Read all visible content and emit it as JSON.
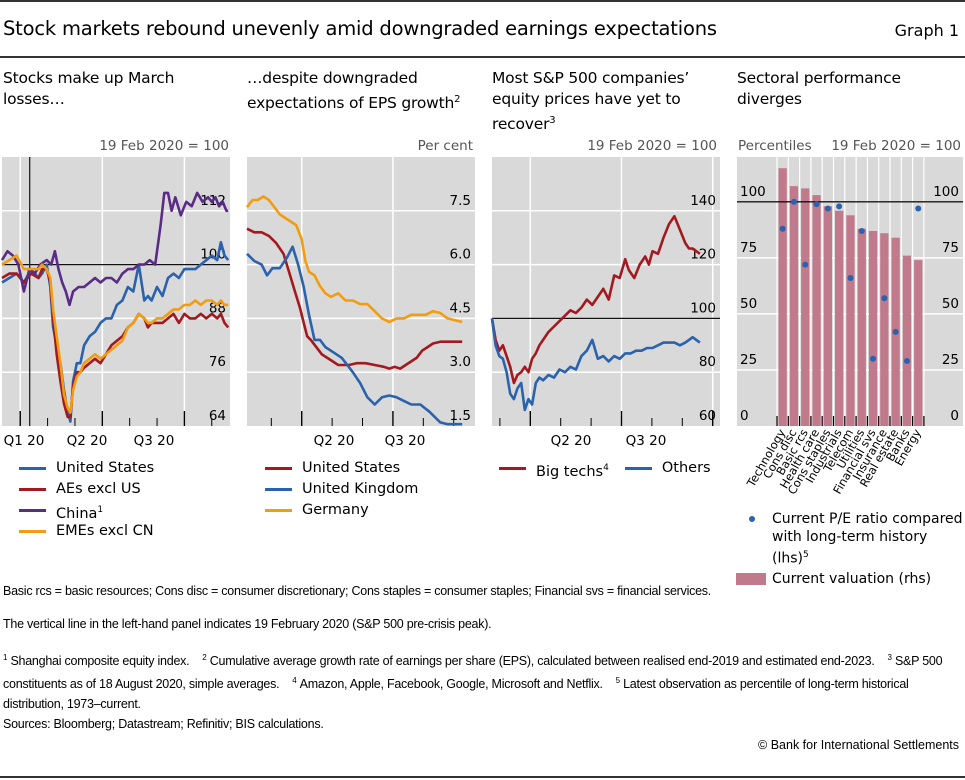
{
  "header": {
    "title": "Stock markets rebound unevenly amid downgraded earnings expectations",
    "graph_number": "Graph 1"
  },
  "colors": {
    "plot_bg": "#d9d9d9",
    "grid": "#ffffff",
    "blue": "#2a62ad",
    "red": "#a3191f",
    "purple": "#5b2c86",
    "orange": "#f29c10",
    "bar": "#c07a8b",
    "dot": "#2a62ad"
  },
  "panels": [
    {
      "title": "Stocks make up March losses…",
      "title_sup": "",
      "unit": "19 Feb 2020 = 100",
      "legend": [
        {
          "label": "United States",
          "sup": "",
          "color_key": "blue"
        },
        {
          "label": "AEs excl US",
          "sup": "",
          "color_key": "red"
        },
        {
          "label": "China",
          "sup": "1",
          "color_key": "purple"
        },
        {
          "label": "EMEs excl CN",
          "sup": "",
          "color_key": "orange"
        }
      ]
    },
    {
      "title": "…despite downgraded expectations of EPS growth",
      "title_sup": "2",
      "unit": "Per cent",
      "legend": [
        {
          "label": "United States",
          "sup": "",
          "color_key": "red"
        },
        {
          "label": "United Kingdom",
          "sup": "",
          "color_key": "blue"
        },
        {
          "label": "Germany",
          "sup": "",
          "color_key": "orange"
        }
      ]
    },
    {
      "title": "Most S&P 500 companies’ equity prices have yet to recover",
      "title_sup": "3",
      "unit": "19 Feb 2020 = 100",
      "legend": [
        {
          "label": "Big techs",
          "sup": "4",
          "color_key": "red"
        },
        {
          "label": "Others",
          "sup": "",
          "color_key": "blue"
        }
      ]
    },
    {
      "title": "Sectoral performance diverges",
      "title_sup": "",
      "unit_left": "Percentiles",
      "unit": "19 Feb 2020 = 100",
      "legend": [
        {
          "label": "Current P/E ratio compared with long-term history (lhs)",
          "sup": "5",
          "kind": "dot"
        },
        {
          "label": "Current valuation (rhs)",
          "sup": "",
          "kind": "bar"
        }
      ]
    }
  ],
  "chart_data": [
    {
      "type": "line",
      "title": "Stocks make up March losses…",
      "ylabel": "19 Feb 2020 = 100",
      "ylim": [
        64,
        124
      ],
      "yticks": [
        64,
        76,
        88,
        100,
        112
      ],
      "x_tick_labels": [
        "Q1 20",
        "Q2 20",
        "Q3 20"
      ],
      "reference_hline": 100,
      "reference_vline": "19 Feb 2020",
      "xlim_days": [
        0,
        250
      ],
      "x_quarter_starts": [
        20,
        110,
        200
      ],
      "vline_day": 49,
      "series": [
        {
          "name": "United States",
          "color_key": "blue",
          "x": [
            0,
            8,
            16,
            24,
            32,
            40,
            44,
            49,
            53,
            56,
            60,
            64,
            68,
            72,
            75,
            78,
            82,
            86,
            90,
            96,
            102,
            108,
            114,
            120,
            126,
            132,
            138,
            144,
            150,
            156,
            160,
            164,
            170,
            176,
            182,
            188,
            194,
            200,
            206,
            212,
            218,
            224,
            230,
            236,
            240,
            244,
            248
          ],
          "y": [
            96,
            97,
            98,
            96,
            99,
            97,
            98,
            100,
            95,
            86,
            82,
            78,
            72,
            67,
            65,
            74,
            78,
            78,
            82,
            84,
            85,
            87,
            88,
            88,
            91,
            92,
            95,
            94,
            100,
            92,
            93,
            92,
            95,
            93,
            97,
            98,
            97,
            99,
            99,
            99,
            100,
            101,
            102,
            101,
            105,
            102,
            101
          ]
        },
        {
          "name": "AEs excl US",
          "color_key": "red",
          "x": [
            0,
            8,
            16,
            24,
            32,
            40,
            44,
            49,
            53,
            56,
            60,
            64,
            68,
            72,
            75,
            78,
            82,
            86,
            90,
            96,
            102,
            108,
            114,
            120,
            126,
            132,
            138,
            144,
            150,
            156,
            160,
            164,
            170,
            176,
            182,
            188,
            194,
            200,
            206,
            212,
            218,
            224,
            230,
            236,
            240,
            244,
            248
          ],
          "y": [
            97,
            98,
            98,
            96,
            98,
            97,
            99,
            99,
            96,
            88,
            80,
            74,
            69,
            66,
            66,
            73,
            76,
            76,
            77,
            78,
            79,
            78,
            80,
            82,
            83,
            84,
            86,
            87,
            89,
            88,
            86,
            87,
            87,
            87,
            88,
            89,
            87,
            89,
            88,
            88,
            89,
            88,
            89,
            88,
            89,
            87,
            86
          ]
        },
        {
          "name": "China",
          "color_key": "purple",
          "x": [
            0,
            6,
            12,
            18,
            24,
            30,
            36,
            42,
            49,
            54,
            58,
            62,
            66,
            70,
            74,
            78,
            84,
            90,
            96,
            102,
            108,
            114,
            120,
            126,
            132,
            138,
            144,
            150,
            156,
            162,
            168,
            174,
            178,
            182,
            186,
            190,
            196,
            202,
            208,
            214,
            220,
            226,
            230,
            234,
            238,
            242,
            246,
            248
          ],
          "y": [
            101,
            103,
            102,
            100,
            94,
            99,
            98,
            100,
            101,
            100,
            103,
            99,
            96,
            94,
            91,
            94,
            95,
            95,
            96,
            97,
            96,
            97,
            97,
            96,
            98,
            99,
            99,
            100,
            100,
            101,
            100,
            109,
            116,
            116,
            112,
            115,
            111,
            114,
            113,
            116,
            114,
            115,
            114,
            115,
            113,
            114,
            112,
            112
          ]
        },
        {
          "name": "EMEs excl CN",
          "color_key": "orange",
          "x": [
            0,
            8,
            16,
            24,
            32,
            40,
            44,
            49,
            53,
            56,
            60,
            64,
            68,
            72,
            75,
            78,
            82,
            86,
            90,
            96,
            102,
            108,
            114,
            120,
            126,
            132,
            138,
            144,
            150,
            156,
            160,
            164,
            170,
            176,
            182,
            188,
            194,
            200,
            206,
            212,
            218,
            224,
            230,
            236,
            240,
            244,
            248
          ],
          "y": [
            100,
            101,
            102,
            99,
            99,
            99,
            100,
            99,
            97,
            90,
            84,
            78,
            71,
            68,
            67,
            72,
            75,
            76,
            78,
            79,
            80,
            79,
            80,
            81,
            82,
            83,
            86,
            87,
            89,
            88,
            87,
            87,
            88,
            88,
            89,
            90,
            90,
            91,
            91,
            92,
            91,
            92,
            92,
            91,
            92,
            91,
            91
          ]
        }
      ]
    },
    {
      "type": "line",
      "title": "…despite downgraded expectations of EPS growth",
      "ylabel": "Per cent",
      "ylim": [
        1.5,
        9.0
      ],
      "yticks": [
        1.5,
        3.0,
        4.5,
        6.0,
        7.5
      ],
      "x_tick_labels": [
        "Q2 20",
        "Q3 20"
      ],
      "xlim_days": [
        0,
        250
      ],
      "x_quarter_starts": [
        60,
        160
      ],
      "series": [
        {
          "name": "United States",
          "color_key": "red",
          "x": [
            0,
            8,
            16,
            24,
            32,
            40,
            46,
            52,
            58,
            62,
            66,
            70,
            76,
            82,
            88,
            94,
            100,
            106,
            112,
            120,
            130,
            140,
            150,
            156,
            162,
            168,
            174,
            180,
            186,
            192,
            198,
            204,
            212,
            220,
            236
          ],
          "y": [
            7.0,
            6.9,
            6.9,
            6.8,
            6.6,
            6.3,
            5.8,
            5.3,
            4.8,
            4.4,
            4.0,
            3.9,
            3.7,
            3.5,
            3.4,
            3.3,
            3.2,
            3.2,
            3.2,
            3.25,
            3.25,
            3.2,
            3.15,
            3.1,
            3.15,
            3.1,
            3.2,
            3.3,
            3.4,
            3.6,
            3.7,
            3.8,
            3.85,
            3.85,
            3.85
          ]
        },
        {
          "name": "United Kingdom",
          "color_key": "blue",
          "x": [
            0,
            8,
            16,
            22,
            28,
            36,
            44,
            50,
            56,
            62,
            68,
            74,
            80,
            86,
            92,
            98,
            104,
            110,
            116,
            124,
            132,
            140,
            148,
            156,
            164,
            172,
            180,
            190,
            200,
            212,
            220,
            236
          ],
          "y": [
            6.3,
            6.1,
            6.0,
            5.7,
            5.9,
            5.9,
            6.2,
            6.5,
            6.0,
            5.4,
            4.6,
            3.9,
            3.9,
            3.7,
            3.6,
            3.5,
            3.4,
            3.2,
            3.0,
            2.7,
            2.3,
            2.1,
            2.3,
            2.35,
            2.3,
            2.2,
            2.1,
            2.1,
            1.9,
            1.6,
            1.55,
            1.55
          ]
        },
        {
          "name": "Germany",
          "color_key": "orange",
          "x": [
            0,
            6,
            12,
            18,
            24,
            30,
            36,
            42,
            48,
            54,
            60,
            64,
            68,
            74,
            80,
            86,
            92,
            100,
            108,
            116,
            124,
            132,
            140,
            148,
            156,
            164,
            172,
            180,
            188,
            196,
            204,
            212,
            220,
            236
          ],
          "y": [
            7.6,
            7.8,
            7.8,
            7.9,
            7.8,
            7.6,
            7.4,
            7.3,
            7.2,
            7.1,
            6.7,
            6.1,
            5.8,
            5.7,
            5.4,
            5.2,
            5.1,
            5.2,
            5.0,
            5.0,
            4.9,
            4.9,
            4.7,
            4.5,
            4.4,
            4.5,
            4.5,
            4.6,
            4.6,
            4.6,
            4.7,
            4.65,
            4.5,
            4.4
          ]
        }
      ]
    },
    {
      "type": "line",
      "title": "Most S&P 500 companies’ equity prices have yet to recover",
      "ylabel": "19 Feb 2020 = 100",
      "ylim": [
        60,
        160
      ],
      "yticks": [
        60,
        80,
        100,
        120,
        140
      ],
      "x_tick_labels": [
        "Q2 20",
        "Q3 20"
      ],
      "reference_hline": 100,
      "xlim_days": [
        0,
        250
      ],
      "x_quarter_starts": [
        42,
        142
      ],
      "series": [
        {
          "name": "Big techs",
          "color_key": "red",
          "x": [
            0,
            4,
            8,
            12,
            16,
            20,
            24,
            28,
            32,
            36,
            40,
            44,
            48,
            52,
            56,
            62,
            68,
            74,
            80,
            86,
            92,
            98,
            104,
            110,
            116,
            122,
            128,
            134,
            140,
            146,
            150,
            156,
            162,
            168,
            172,
            176,
            182,
            188,
            194,
            200,
            206,
            212,
            216,
            220,
            224,
            228
          ],
          "y": [
            100,
            92,
            88,
            90,
            86,
            82,
            76,
            79,
            80,
            82,
            80,
            85,
            87,
            90,
            92,
            95,
            97,
            99,
            101,
            103,
            102,
            104,
            107,
            105,
            108,
            111,
            107,
            116,
            115,
            122,
            118,
            115,
            120,
            123,
            120,
            125,
            124,
            130,
            135,
            138,
            133,
            128,
            126,
            126,
            125,
            124
          ]
        },
        {
          "name": "Others",
          "color_key": "blue",
          "x": [
            0,
            4,
            8,
            12,
            16,
            20,
            24,
            28,
            32,
            36,
            40,
            44,
            48,
            52,
            56,
            62,
            68,
            74,
            80,
            86,
            92,
            98,
            104,
            110,
            116,
            122,
            128,
            134,
            140,
            146,
            152,
            158,
            164,
            170,
            176,
            182,
            188,
            194,
            200,
            206,
            212,
            216,
            220,
            224,
            228
          ],
          "y": [
            100,
            90,
            86,
            85,
            80,
            72,
            70,
            74,
            76,
            66,
            70,
            68,
            76,
            78,
            77,
            79,
            78,
            81,
            80,
            82,
            81,
            86,
            88,
            92,
            85,
            86,
            84,
            86,
            85,
            87,
            87,
            88,
            88,
            89,
            89,
            90,
            91,
            91,
            91,
            90,
            91,
            92,
            93,
            92,
            91
          ]
        }
      ]
    },
    {
      "type": "bar",
      "title": "Sectoral performance diverges",
      "categories": [
        "Technology",
        "Cons disc",
        "Basic rcs",
        "Health care",
        "Cons staples",
        "Industrials",
        "Telecom",
        "Utilities",
        "Financial svs",
        "Insurance",
        "Real estate",
        "Banks",
        "Energy"
      ],
      "series": [
        {
          "name": "Current valuation (rhs)",
          "kind": "bar",
          "axis": "rhs",
          "unit": "19 Feb 2020 = 100",
          "values": [
            115,
            107,
            106,
            103,
            98,
            96,
            94,
            88,
            87,
            86,
            84,
            76,
            74
          ]
        },
        {
          "name": "Current P/E ratio compared with long-term history (lhs)",
          "kind": "dot",
          "axis": "lhs",
          "unit": "Percentiles",
          "values": [
            88,
            100,
            72,
            99,
            97,
            98,
            66,
            87,
            30,
            57,
            42,
            29,
            97
          ]
        }
      ],
      "ylim": [
        0,
        120
      ],
      "yticks": [
        0,
        25,
        50,
        75,
        100
      ],
      "reference_hline": 100
    }
  ],
  "notes": {
    "abbrev": "Basic rcs = basic resources; Cons disc = consumer discretionary; Cons staples = consumer staples; Financial svs = financial services.",
    "vline": "The vertical line in the left-hand panel indicates 19 February 2020 (S&P 500 pre-crisis peak).",
    "fn1_num": "1",
    "fn1": "Shanghai composite equity index.",
    "fn2_num": "2",
    "fn2": "Cumulative average growth rate of earnings per share (EPS), calculated between realised end-2019 and estimated end-2023.",
    "fn3_num": "3",
    "fn3": "S&P 500 constituents as of 18 August 2020, simple averages.",
    "fn4_num": "4",
    "fn4": "Amazon, Apple, Facebook, Google, Microsoft and Netflix.",
    "fn5_num": "5",
    "fn5": "Latest observation as percentile of long-term historical distribution, 1973–current.",
    "sources": "Sources: Bloomberg; Datastream; Refinitiv; BIS calculations.",
    "copyright": "© Bank for International Settlements"
  }
}
